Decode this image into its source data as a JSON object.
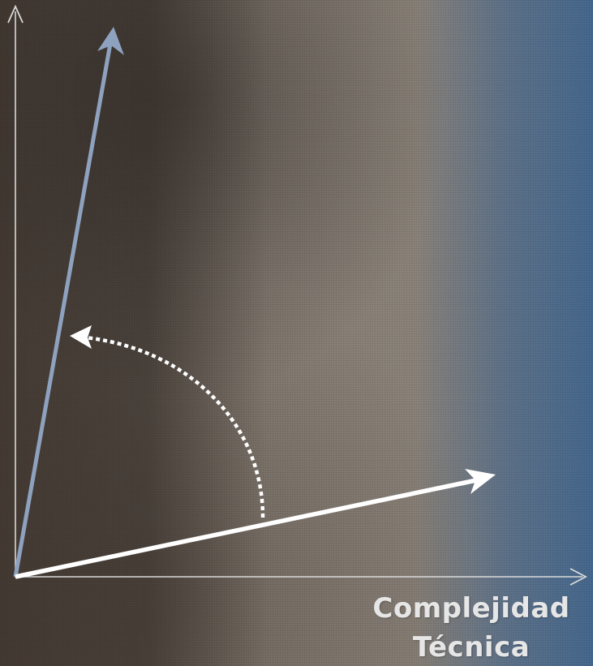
{
  "x_axis_label": {
    "line1": "Complejidad",
    "line2": "Técnica"
  },
  "colors": {
    "axis": "#d9d9d9",
    "white_vector": "#ffffff",
    "blue_vector": "#8ea2bf",
    "rotation_arc": "#ffffff",
    "background_dark": "#3a322c",
    "background_mid": "#8a8178",
    "background_blue": "#4d6f90"
  },
  "elements": {
    "x_axis": "arrow",
    "y_axis": "arrow",
    "blue_vector": "arrow",
    "white_vector": "arrow",
    "rotation_arc": "dotted-curved-arrow"
  }
}
